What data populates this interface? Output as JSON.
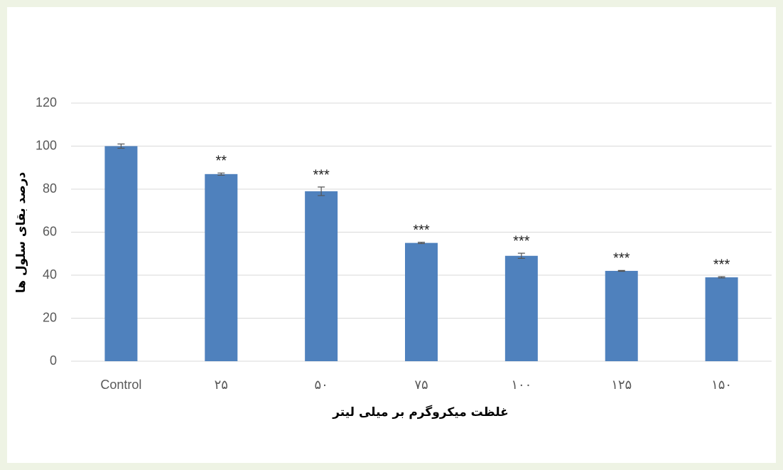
{
  "chart_data": {
    "type": "bar",
    "categories": [
      "Control",
      "۲۵",
      "۵۰",
      "۷۵",
      "۱۰۰",
      "۱۲۵",
      "۱۵۰"
    ],
    "values": [
      100,
      87,
      79,
      55,
      49,
      42,
      39
    ],
    "errors": [
      1,
      0.5,
      2,
      0.3,
      1.2,
      0.2,
      0.3
    ],
    "significance": [
      null,
      "**",
      "***",
      "***",
      "***",
      "***",
      "***"
    ],
    "color": "#4f81bd",
    "x_label": "غلظت میکروگرم بر میلی لیتر",
    "y_label": "درصد بقای سلول ها",
    "ylim": [
      0,
      120
    ],
    "yticks": [
      0,
      20,
      40,
      60,
      80,
      100,
      120
    ],
    "grid": true
  }
}
